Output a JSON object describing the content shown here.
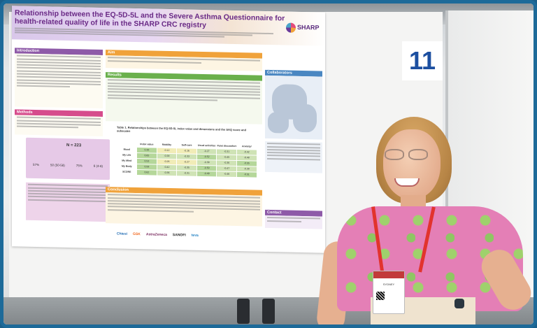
{
  "scene": {
    "description_colors": {
      "frame": "#1d6a99",
      "poster_title": "#6a2a86",
      "panel_number": "#1c4fa0",
      "lanyard": "#e2332d"
    }
  },
  "panel_number": "11",
  "poster": {
    "title": "Relationship between the EQ-5D-5L and the Severe Asthma Questionnaire for health-related quality of life in the SHARP CRC registry",
    "logo_text": "SHARP",
    "sections": {
      "introduction": "Introduction",
      "aim": "Aim",
      "results": "Results",
      "methods": "Methods",
      "conclusion": "Conclusion",
      "collaborators": "Collaborators",
      "contact": "Contact"
    },
    "n_label": "N = 223",
    "stats": [
      "57%",
      "50 (50-58)",
      "75%",
      "6 (4-8)"
    ],
    "table_caption": "Table 1. Relationships between the EQ-5D-5L index value and dimensions and the SAQ score and subscales",
    "table_header": [
      "",
      "Index value",
      "Mobility",
      "Self-care",
      "Usual activities",
      "Pain/ discomfort",
      "Anxiety/ depression"
    ],
    "table_rows": [
      [
        "Mood",
        "0.38",
        "-0.12",
        "-0.16",
        "-0.27",
        "-0.31",
        "-0.42"
      ],
      [
        "My Life",
        "0.65",
        "-0.38",
        "-0.33",
        "-0.52",
        "-0.45",
        "-0.48"
      ],
      [
        "My Mind",
        "0.53",
        "-0.26",
        "-0.27",
        "-0.39",
        "-0.36",
        "-0.55"
      ],
      [
        "My Body",
        "0.59",
        "-0.42",
        "-0.35",
        "-0.50",
        "-0.47",
        "-0.38"
      ],
      [
        "SCORE",
        "0.62",
        "-0.36",
        "-0.31",
        "-0.49",
        "-0.46",
        "-0.51"
      ]
    ],
    "sponsors": [
      "Chiesi",
      "GSK",
      "AstraZeneca",
      "SANOFI",
      "teva"
    ]
  },
  "badge": {
    "name": "SYDNEY"
  }
}
